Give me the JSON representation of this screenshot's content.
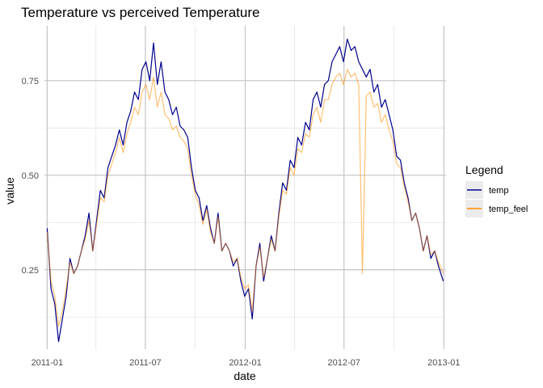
{
  "chart_data": {
    "type": "line",
    "title": "Temperature vs perceived Temperature",
    "xlabel": "date",
    "ylabel": "value",
    "x_ticks": [
      "2011-01",
      "2011-07",
      "2012-01",
      "2012-07",
      "2013-01"
    ],
    "y_ticks": [
      "0.25",
      "0.50",
      "0.75"
    ],
    "xlim": [
      "2010-12-27",
      "2013-01-05"
    ],
    "ylim": [
      0.04,
      0.895
    ],
    "grid": true,
    "legend": {
      "title": "Legend",
      "position": "right",
      "entries": [
        {
          "name": "temp",
          "color": "#00008b"
        },
        {
          "name": "temp_feel",
          "color": "#ff8c00"
        }
      ]
    },
    "series": [
      {
        "name": "temp",
        "color": "#00008b",
        "x": [
          "2011-01-01",
          "2011-01-08",
          "2011-01-15",
          "2011-01-22",
          "2011-01-29",
          "2011-02-05",
          "2011-02-12",
          "2011-02-19",
          "2011-02-26",
          "2011-03-05",
          "2011-03-12",
          "2011-03-19",
          "2011-03-26",
          "2011-04-02",
          "2011-04-09",
          "2011-04-16",
          "2011-04-23",
          "2011-04-30",
          "2011-05-07",
          "2011-05-14",
          "2011-05-21",
          "2011-05-28",
          "2011-06-04",
          "2011-06-11",
          "2011-06-18",
          "2011-06-25",
          "2011-07-02",
          "2011-07-09",
          "2011-07-16",
          "2011-07-23",
          "2011-07-30",
          "2011-08-06",
          "2011-08-13",
          "2011-08-20",
          "2011-08-27",
          "2011-09-03",
          "2011-09-10",
          "2011-09-17",
          "2011-09-24",
          "2011-10-01",
          "2011-10-08",
          "2011-10-15",
          "2011-10-22",
          "2011-10-29",
          "2011-11-05",
          "2011-11-12",
          "2011-11-19",
          "2011-11-26",
          "2011-12-03",
          "2011-12-10",
          "2011-12-17",
          "2011-12-24",
          "2011-12-31",
          "2012-01-07",
          "2012-01-14",
          "2012-01-21",
          "2012-01-28",
          "2012-02-04",
          "2012-02-11",
          "2012-02-18",
          "2012-02-25",
          "2012-03-03",
          "2012-03-10",
          "2012-03-17",
          "2012-03-24",
          "2012-03-31",
          "2012-04-07",
          "2012-04-14",
          "2012-04-21",
          "2012-04-28",
          "2012-05-05",
          "2012-05-12",
          "2012-05-19",
          "2012-05-26",
          "2012-06-02",
          "2012-06-09",
          "2012-06-16",
          "2012-06-23",
          "2012-06-30",
          "2012-07-07",
          "2012-07-14",
          "2012-07-21",
          "2012-07-28",
          "2012-08-04",
          "2012-08-11",
          "2012-08-18",
          "2012-08-25",
          "2012-09-01",
          "2012-09-08",
          "2012-09-15",
          "2012-09-22",
          "2012-09-29",
          "2012-10-06",
          "2012-10-13",
          "2012-10-20",
          "2012-10-27",
          "2012-11-03",
          "2012-11-10",
          "2012-11-17",
          "2012-11-24",
          "2012-12-01",
          "2012-12-08",
          "2012-12-15",
          "2012-12-22",
          "2012-12-31"
        ],
        "values": [
          0.36,
          0.2,
          0.16,
          0.06,
          0.12,
          0.18,
          0.28,
          0.24,
          0.26,
          0.3,
          0.34,
          0.4,
          0.3,
          0.38,
          0.46,
          0.44,
          0.52,
          0.55,
          0.58,
          0.62,
          0.58,
          0.64,
          0.67,
          0.72,
          0.7,
          0.78,
          0.8,
          0.75,
          0.85,
          0.74,
          0.8,
          0.72,
          0.7,
          0.66,
          0.68,
          0.63,
          0.62,
          0.6,
          0.52,
          0.46,
          0.44,
          0.38,
          0.42,
          0.36,
          0.32,
          0.4,
          0.3,
          0.32,
          0.3,
          0.26,
          0.28,
          0.22,
          0.18,
          0.2,
          0.12,
          0.26,
          0.32,
          0.22,
          0.28,
          0.34,
          0.3,
          0.4,
          0.48,
          0.46,
          0.54,
          0.52,
          0.6,
          0.58,
          0.64,
          0.62,
          0.7,
          0.72,
          0.68,
          0.74,
          0.75,
          0.8,
          0.82,
          0.84,
          0.8,
          0.86,
          0.83,
          0.84,
          0.8,
          0.78,
          0.76,
          0.78,
          0.72,
          0.74,
          0.68,
          0.7,
          0.66,
          0.62,
          0.55,
          0.54,
          0.48,
          0.44,
          0.38,
          0.4,
          0.36,
          0.3,
          0.34,
          0.28,
          0.3,
          0.26,
          0.22
        ]
      },
      {
        "name": "temp_feel",
        "color": "#ff8c00",
        "x": [
          "2011-01-01",
          "2011-01-08",
          "2011-01-15",
          "2011-01-22",
          "2011-01-29",
          "2011-02-05",
          "2011-02-12",
          "2011-02-19",
          "2011-02-26",
          "2011-03-05",
          "2011-03-12",
          "2011-03-19",
          "2011-03-26",
          "2011-04-02",
          "2011-04-09",
          "2011-04-16",
          "2011-04-23",
          "2011-04-30",
          "2011-05-07",
          "2011-05-14",
          "2011-05-21",
          "2011-05-28",
          "2011-06-04",
          "2011-06-11",
          "2011-06-18",
          "2011-06-25",
          "2011-07-02",
          "2011-07-09",
          "2011-07-16",
          "2011-07-23",
          "2011-07-30",
          "2011-08-06",
          "2011-08-13",
          "2011-08-20",
          "2011-08-27",
          "2011-09-03",
          "2011-09-10",
          "2011-09-17",
          "2011-09-24",
          "2011-10-01",
          "2011-10-08",
          "2011-10-15",
          "2011-10-22",
          "2011-10-29",
          "2011-11-05",
          "2011-11-12",
          "2011-11-19",
          "2011-11-26",
          "2011-12-03",
          "2011-12-10",
          "2011-12-17",
          "2011-12-24",
          "2011-12-31",
          "2012-01-07",
          "2012-01-14",
          "2012-01-21",
          "2012-01-28",
          "2012-02-04",
          "2012-02-11",
          "2012-02-18",
          "2012-02-25",
          "2012-03-03",
          "2012-03-10",
          "2012-03-17",
          "2012-03-24",
          "2012-03-31",
          "2012-04-07",
          "2012-04-14",
          "2012-04-21",
          "2012-04-28",
          "2012-05-05",
          "2012-05-12",
          "2012-05-19",
          "2012-05-26",
          "2012-06-02",
          "2012-06-09",
          "2012-06-16",
          "2012-06-23",
          "2012-06-30",
          "2012-07-07",
          "2012-07-14",
          "2012-07-21",
          "2012-07-28",
          "2012-08-04",
          "2012-08-11",
          "2012-08-18",
          "2012-08-25",
          "2012-09-01",
          "2012-09-08",
          "2012-09-15",
          "2012-09-22",
          "2012-09-29",
          "2012-10-06",
          "2012-10-13",
          "2012-10-20",
          "2012-10-27",
          "2012-11-03",
          "2012-11-10",
          "2012-11-17",
          "2012-11-24",
          "2012-12-01",
          "2012-12-08",
          "2012-12-15",
          "2012-12-22",
          "2012-12-31"
        ],
        "values": [
          0.35,
          0.22,
          0.18,
          0.1,
          0.14,
          0.2,
          0.27,
          0.24,
          0.26,
          0.3,
          0.33,
          0.38,
          0.3,
          0.37,
          0.44,
          0.43,
          0.5,
          0.53,
          0.56,
          0.6,
          0.56,
          0.61,
          0.64,
          0.68,
          0.66,
          0.72,
          0.74,
          0.7,
          0.76,
          0.68,
          0.72,
          0.66,
          0.65,
          0.62,
          0.63,
          0.6,
          0.59,
          0.57,
          0.5,
          0.45,
          0.42,
          0.37,
          0.41,
          0.35,
          0.32,
          0.39,
          0.3,
          0.32,
          0.3,
          0.27,
          0.28,
          0.23,
          0.2,
          0.21,
          0.14,
          0.26,
          0.31,
          0.23,
          0.28,
          0.33,
          0.3,
          0.39,
          0.46,
          0.45,
          0.52,
          0.5,
          0.57,
          0.56,
          0.61,
          0.6,
          0.66,
          0.68,
          0.64,
          0.7,
          0.7,
          0.74,
          0.76,
          0.77,
          0.74,
          0.78,
          0.76,
          0.77,
          0.74,
          0.24,
          0.71,
          0.72,
          0.68,
          0.69,
          0.64,
          0.66,
          0.62,
          0.59,
          0.53,
          0.52,
          0.47,
          0.43,
          0.38,
          0.4,
          0.36,
          0.3,
          0.34,
          0.29,
          0.3,
          0.27,
          0.24
        ]
      }
    ]
  }
}
